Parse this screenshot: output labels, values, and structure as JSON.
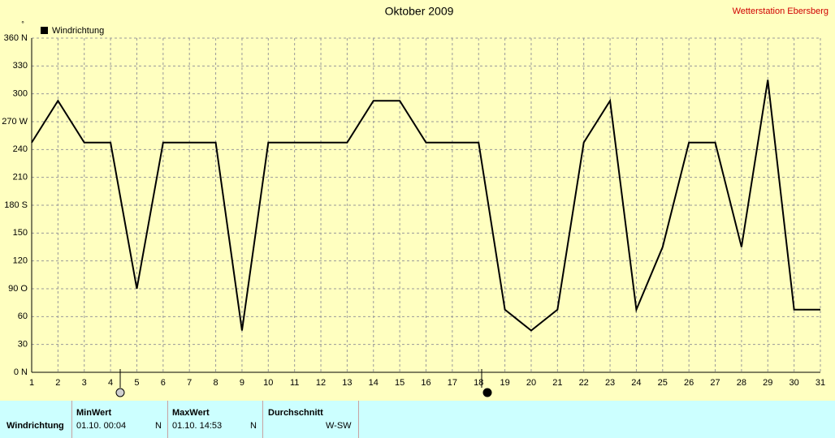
{
  "chart_data": {
    "type": "line",
    "title": "Oktober 2009",
    "subtitle": "Wetterstation Ebersberg",
    "y_unit": "°",
    "x": [
      1,
      2,
      3,
      4,
      5,
      6,
      7,
      8,
      9,
      10,
      11,
      12,
      13,
      14,
      15,
      16,
      17,
      18,
      19,
      20,
      21,
      22,
      23,
      24,
      25,
      26,
      27,
      28,
      29,
      30,
      31
    ],
    "series": [
      {
        "name": "Windrichtung",
        "color": "#000000",
        "values": [
          247.5,
          292.5,
          247.5,
          247.5,
          90,
          247.5,
          247.5,
          247.5,
          45,
          247.5,
          247.5,
          247.5,
          247.5,
          292.5,
          292.5,
          247.5,
          247.5,
          247.5,
          67.5,
          45,
          67.5,
          247.5,
          292.5,
          67.5,
          135,
          247.5,
          247.5,
          135,
          315,
          67.5,
          67.5
        ]
      }
    ],
    "xlim": [
      1,
      31
    ],
    "xticks": [
      1,
      2,
      3,
      4,
      5,
      6,
      7,
      8,
      9,
      10,
      11,
      12,
      13,
      14,
      15,
      16,
      17,
      18,
      19,
      20,
      21,
      22,
      23,
      24,
      25,
      26,
      27,
      28,
      29,
      30,
      31
    ],
    "ylim": [
      0,
      360
    ],
    "yticks": [
      {
        "value": 0,
        "label": "0 N"
      },
      30,
      60,
      {
        "value": 90,
        "label": "90 O"
      },
      120,
      150,
      {
        "value": 180,
        "label": "180 S"
      },
      210,
      240,
      {
        "value": 270,
        "label": "270 W"
      },
      300,
      330,
      {
        "value": 360,
        "label": "360 N"
      }
    ],
    "grid": true,
    "legend": "top-left"
  },
  "stats": {
    "row_label": "Windrichtung",
    "headers": [
      "MinWert",
      "MaxWert",
      "Durchschnitt"
    ],
    "min": {
      "time": "01.10.  00:04",
      "dir": "N"
    },
    "max": {
      "time": "01.10.  14:53",
      "dir": "N"
    },
    "avg": "W-SW"
  }
}
